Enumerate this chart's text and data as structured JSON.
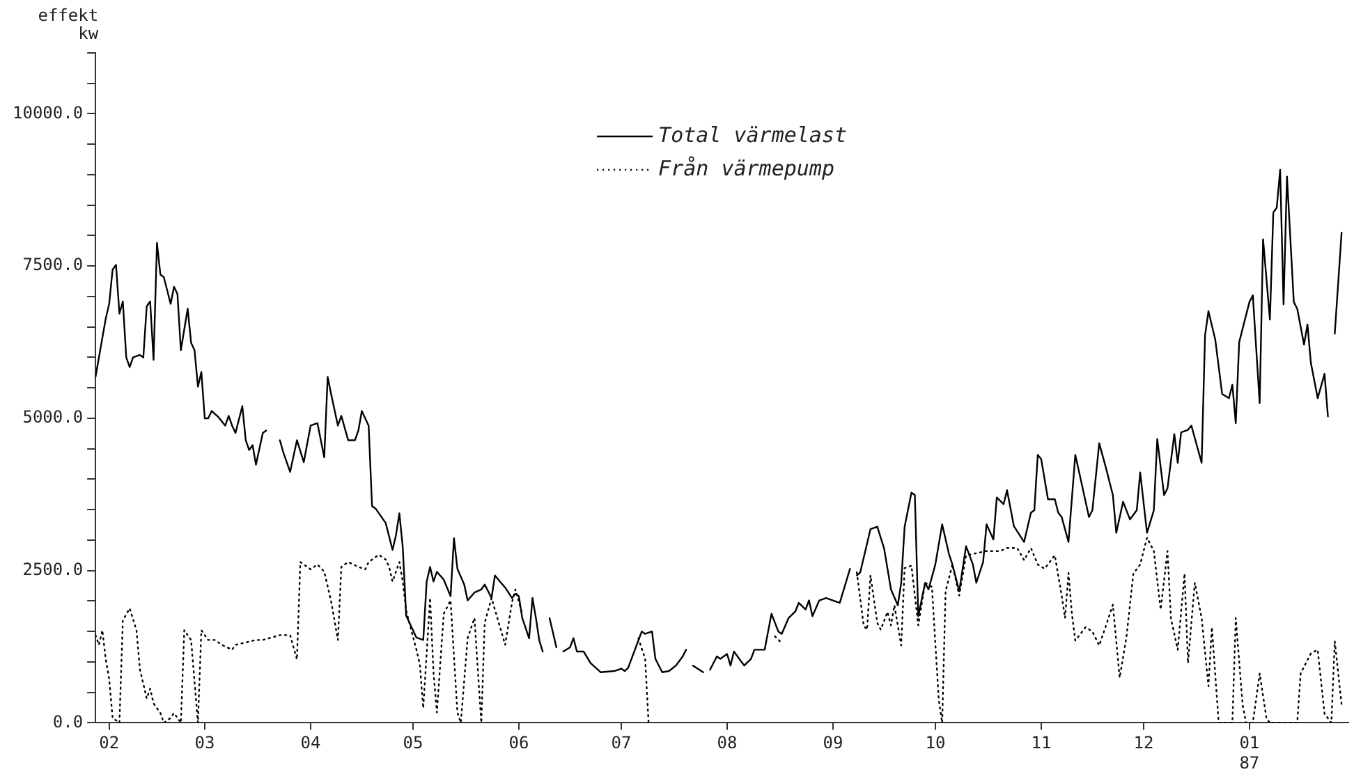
{
  "chart_data": {
    "type": "line",
    "ylabel": "effekt\nkw",
    "xlim": [
      "1986-01-28",
      "1987-01-30"
    ],
    "xticks": [
      {
        "value": "1986-02-01",
        "label": "02"
      },
      {
        "value": "1986-03-01",
        "label": "03"
      },
      {
        "value": "1986-04-01",
        "label": "04"
      },
      {
        "value": "1986-05-01",
        "label": "05"
      },
      {
        "value": "1986-06-01",
        "label": "06"
      },
      {
        "value": "1986-07-01",
        "label": "07"
      },
      {
        "value": "1986-08-01",
        "label": "08"
      },
      {
        "value": "1986-09-01",
        "label": "09"
      },
      {
        "value": "1986-10-01",
        "label": "10"
      },
      {
        "value": "1986-11-01",
        "label": "11"
      },
      {
        "value": "1986-12-01",
        "label": "12"
      },
      {
        "value": "1987-01-01",
        "label": "01\n87"
      }
    ],
    "ylim": [
      0,
      11000
    ],
    "yticks": [
      {
        "value": 0,
        "label": "0.0"
      },
      {
        "value": 500,
        "label": null
      },
      {
        "value": 1000,
        "label": null
      },
      {
        "value": 1500,
        "label": null
      },
      {
        "value": 2000,
        "label": null
      },
      {
        "value": 2500,
        "label": "2500.0"
      },
      {
        "value": 3000,
        "label": null
      },
      {
        "value": 3500,
        "label": null
      },
      {
        "value": 4000,
        "label": null
      },
      {
        "value": 4500,
        "label": null
      },
      {
        "value": 5000,
        "label": "5000.0"
      },
      {
        "value": 5500,
        "label": null
      },
      {
        "value": 6000,
        "label": null
      },
      {
        "value": 6500,
        "label": null
      },
      {
        "value": 7000,
        "label": null
      },
      {
        "value": 7500,
        "label": "7500.0"
      },
      {
        "value": 8000,
        "label": null
      },
      {
        "value": 8500,
        "label": null
      },
      {
        "value": 9000,
        "label": null
      },
      {
        "value": 9500,
        "label": null
      },
      {
        "value": 10000,
        "label": "10000.0"
      },
      {
        "value": 10500,
        "label": null
      },
      {
        "value": 11000,
        "label": null
      }
    ],
    "legend": "top",
    "series": [
      {
        "name": "Total värmelast",
        "color": "#000000",
        "line_style": "solid",
        "x": [
          "1986-01-28",
          "1986-01-29",
          "1986-01-31",
          "1986-02-01",
          "1986-02-02",
          "1986-02-03",
          "1986-02-04",
          "1986-02-05",
          "1986-02-06",
          "1986-02-07",
          "1986-02-08",
          "1986-02-10",
          "1986-02-11",
          "1986-02-12",
          "1986-02-13",
          "1986-02-14",
          "1986-02-15",
          "1986-02-16",
          "1986-02-17",
          "1986-02-19",
          "1986-02-20",
          "1986-02-21",
          "1986-02-22",
          "1986-02-24",
          "1986-02-25",
          "1986-02-26",
          "1986-02-27",
          "1986-02-28",
          "1986-03-01",
          "1986-03-02",
          "1986-03-03",
          "1986-03-05",
          "1986-03-07",
          "1986-03-08",
          "1986-03-09",
          "1986-03-10",
          "1986-03-12",
          "1986-03-13",
          "1986-03-14",
          "1986-03-15",
          "1986-03-16",
          "1986-03-18",
          "1986-03-19",
          "1986-03-20",
          "1986-03-23",
          "1986-03-24",
          "1986-03-26",
          "1986-03-28",
          "1986-03-30",
          "1986-04-01",
          "1986-04-03",
          "1986-04-05",
          "1986-04-06",
          "1986-04-07",
          "1986-04-09",
          "1986-04-10",
          "1986-04-12",
          "1986-04-14",
          "1986-04-15",
          "1986-04-16",
          "1986-04-18",
          "1986-04-19",
          "1986-04-20",
          "1986-04-23",
          "1986-04-25",
          "1986-04-26",
          "1986-04-27",
          "1986-04-28",
          "1986-04-29",
          "1986-05-01",
          "1986-05-02",
          "1986-05-04",
          "1986-05-05",
          "1986-05-06",
          "1986-05-07",
          "1986-05-08",
          "1986-05-10",
          "1986-05-12",
          "1986-05-13",
          "1986-05-14",
          "1986-05-16",
          "1986-05-17",
          "1986-05-19",
          "1986-05-21",
          "1986-05-22",
          "1986-05-24",
          "1986-05-25",
          "1986-05-26",
          "1986-05-28",
          "1986-05-30",
          "1986-05-31",
          "1986-06-01",
          "1986-06-02",
          "1986-06-04",
          "1986-06-05",
          "1986-06-06",
          "1986-06-07",
          "1986-06-08",
          "1986-06-09",
          "1986-06-10",
          "1986-06-12",
          "1986-06-13",
          "1986-06-14",
          "1986-06-16",
          "1986-06-17",
          "1986-06-18",
          "1986-06-20",
          "1986-06-22",
          "1986-06-25",
          "1986-06-29",
          "1986-07-01",
          "1986-07-02",
          "1986-07-03",
          "1986-07-06",
          "1986-07-07",
          "1986-07-08",
          "1986-07-10",
          "1986-07-11",
          "1986-07-13",
          "1986-07-15",
          "1986-07-17",
          "1986-07-19",
          "1986-07-20",
          "1986-07-21",
          "1986-07-22",
          "1986-07-25",
          "1986-07-26",
          "1986-07-27",
          "1986-07-29",
          "1986-07-30",
          "1986-08-01",
          "1986-08-02",
          "1986-08-03",
          "1986-08-06",
          "1986-08-08",
          "1986-08-09",
          "1986-08-12",
          "1986-08-14",
          "1986-08-16",
          "1986-08-17",
          "1986-08-19",
          "1986-08-21",
          "1986-08-22",
          "1986-08-24",
          "1986-08-25",
          "1986-08-26",
          "1986-08-28",
          "1986-08-30",
          "1986-09-01",
          "1986-09-03",
          "1986-09-06",
          "1986-09-07",
          "1986-09-08",
          "1986-09-09",
          "1986-09-12",
          "1986-09-14",
          "1986-09-16",
          "1986-09-18",
          "1986-09-20",
          "1986-09-21",
          "1986-09-22",
          "1986-09-24",
          "1986-09-25",
          "1986-09-26",
          "1986-09-28",
          "1986-09-29",
          "1986-10-01",
          "1986-10-03",
          "1986-10-05",
          "1986-10-06",
          "1986-10-08",
          "1986-10-10",
          "1986-10-12",
          "1986-10-13",
          "1986-10-15",
          "1986-10-16",
          "1986-10-18",
          "1986-10-19",
          "1986-10-21",
          "1986-10-22",
          "1986-10-24",
          "1986-10-27",
          "1986-10-29",
          "1986-10-30",
          "1986-10-31",
          "1986-11-01",
          "1986-11-03",
          "1986-11-05",
          "1986-11-06",
          "1986-11-07",
          "1986-11-09",
          "1986-11-11",
          "1986-11-13",
          "1986-11-15",
          "1986-11-16",
          "1986-11-18",
          "1986-11-20",
          "1986-11-22",
          "1986-11-23",
          "1986-11-25",
          "1986-11-27",
          "1986-11-29",
          "1986-11-30",
          "1986-12-02",
          "1986-12-04",
          "1986-12-05",
          "1986-12-07",
          "1986-12-08",
          "1986-12-10",
          "1986-12-11",
          "1986-12-12",
          "1986-12-14",
          "1986-12-15",
          "1986-12-18",
          "1986-12-19",
          "1986-12-20",
          "1986-12-22",
          "1986-12-24",
          "1986-12-26",
          "1986-12-27",
          "1986-12-28",
          "1986-12-29",
          "1986-12-30",
          "1987-01-01",
          "1987-01-02",
          "1987-01-04",
          "1987-01-05",
          "1987-01-07",
          "1987-01-08",
          "1987-01-09",
          "1987-01-10",
          "1987-01-11",
          "1987-01-12",
          "1987-01-14",
          "1987-01-15",
          "1987-01-17",
          "1987-01-18",
          "1987-01-19",
          "1987-01-21",
          "1987-01-23",
          "1987-01-24",
          "1987-01-25",
          "1987-01-26",
          "1987-01-28"
        ],
        "values": [
          5680,
          6000,
          6640,
          6880,
          7440,
          7520,
          6720,
          6920,
          6000,
          5840,
          6000,
          6040,
          6000,
          6840,
          6920,
          5960,
          7880,
          7360,
          7320,
          6880,
          7160,
          7040,
          6120,
          6800,
          6240,
          6120,
          5520,
          5760,
          5000,
          5000,
          5120,
          5020,
          4880,
          5040,
          4880,
          4760,
          5200,
          4640,
          4480,
          4560,
          4240,
          4760,
          4800,
          null,
          4640,
          4440,
          4120,
          4640,
          4280,
          4880,
          4920,
          4360,
          5680,
          5400,
          4880,
          5040,
          4640,
          4640,
          4800,
          5120,
          4880,
          3560,
          3520,
          3280,
          2840,
          3080,
          3440,
          2880,
          1760,
          1520,
          1400,
          1360,
          2320,
          2560,
          2320,
          2480,
          2350,
          2080,
          3030,
          2530,
          2270,
          2010,
          2140,
          2190,
          2270,
          2050,
          2420,
          2350,
          2220,
          2050,
          2120,
          2080,
          1720,
          1390,
          2050,
          1720,
          1350,
          1170,
          null,
          1720,
          1240,
          null,
          1170,
          1240,
          1390,
          1170,
          1170,
          980,
          830,
          850,
          890,
          850,
          900,
          1350,
          1500,
          1460,
          1500,
          1050,
          830,
          850,
          940,
          1090,
          1200,
          null,
          940,
          830,
          null,
          870,
          1090,
          1050,
          1130,
          940,
          1170,
          940,
          1050,
          1200,
          1200,
          1790,
          1500,
          1460,
          1720,
          1830,
          1970,
          1860,
          2010,
          1750,
          2010,
          2050,
          2010,
          1970,
          2530,
          null,
          2420,
          2470,
          3180,
          3220,
          2860,
          2190,
          1930,
          2300,
          3220,
          3780,
          3740,
          1750,
          2300,
          2190,
          2600,
          3260,
          2770,
          2600,
          2160,
          2900,
          2600,
          2300,
          2640,
          3260,
          3010,
          3700,
          3590,
          3820,
          3230,
          2970,
          3450,
          3490,
          4400,
          4330,
          3670,
          3670,
          3450,
          3380,
          2970,
          4400,
          3890,
          3380,
          3490,
          4590,
          4180,
          3740,
          3120,
          3630,
          3340,
          3490,
          4110,
          3120,
          3490,
          4660,
          3740,
          3850,
          4740,
          4270,
          4770,
          4810,
          4880,
          4270,
          6360,
          6760,
          6290,
          5400,
          5330,
          5550,
          4920,
          6250,
          6470,
          6910,
          7020,
          5250,
          7940,
          6620,
          8380,
          8460,
          9080,
          6870,
          8970,
          6910,
          6800,
          6210,
          6540,
          5910,
          5330,
          5730,
          5030,
          null,
          6390,
          8050
        ]
      },
      {
        "name": "Från värmepump",
        "color": "#000000",
        "line_style": "dotted",
        "x": [
          "1986-01-28",
          "1986-01-29",
          "1986-01-30",
          "1986-01-31",
          "1986-02-01",
          "1986-02-02",
          "1986-02-04",
          "1986-02-05",
          "1986-02-07",
          "1986-02-09",
          "1986-02-10",
          "1986-02-12",
          "1986-02-13",
          "1986-02-14",
          "1986-02-16",
          "1986-02-17",
          "1986-02-19",
          "1986-02-20",
          "1986-02-22",
          "1986-02-23",
          "1986-02-25",
          "1986-02-27",
          "1986-02-28",
          "1986-03-02",
          "1986-03-04",
          "1986-03-06",
          "1986-03-09",
          "1986-03-10",
          "1986-03-13",
          "1986-03-16",
          "1986-03-18",
          "1986-03-23",
          "1986-03-26",
          "1986-03-28",
          "1986-03-29",
          "1986-04-01",
          "1986-04-03",
          "1986-04-05",
          "1986-04-07",
          "1986-04-09",
          "1986-04-10",
          "1986-04-12",
          "1986-04-15",
          "1986-04-17",
          "1986-04-18",
          "1986-04-21",
          "1986-04-23",
          "1986-04-24",
          "1986-04-25",
          "1986-04-27",
          "1986-04-28",
          "1986-04-29",
          "1986-05-02",
          "1986-05-03",
          "1986-05-04",
          "1986-05-06",
          "1986-05-07",
          "1986-05-08",
          "1986-05-10",
          "1986-05-12",
          "1986-05-14",
          "1986-05-15",
          "1986-05-17",
          "1986-05-19",
          "1986-05-21",
          "1986-05-22",
          "1986-05-24",
          "1986-05-28",
          "1986-05-30",
          "1986-05-31",
          "1986-06-02",
          "1986-06-03",
          "1986-07-06",
          "1986-07-08",
          "1986-07-09",
          "1986-07-10",
          "1986-08-15",
          "1986-08-17",
          "1986-08-18",
          "1986-09-08",
          "1986-09-10",
          "1986-09-11",
          "1986-09-12",
          "1986-09-14",
          "1986-09-15",
          "1986-09-17",
          "1986-09-18",
          "1986-09-19",
          "1986-09-21",
          "1986-09-22",
          "1986-09-24",
          "1986-09-26",
          "1986-09-28",
          "1986-09-30",
          "1986-10-02",
          "1986-10-03",
          "1986-10-04",
          "1986-10-06",
          "1986-10-08",
          "1986-10-10",
          "1986-10-16",
          "1986-10-20",
          "1986-10-22",
          "1986-10-25",
          "1986-10-27",
          "1986-10-29",
          "1986-10-31",
          "1986-11-02",
          "1986-11-05",
          "1986-11-07",
          "1986-11-08",
          "1986-11-09",
          "1986-11-10",
          "1986-11-11",
          "1986-11-14",
          "1986-11-16",
          "1986-11-18",
          "1986-11-20",
          "1986-11-22",
          "1986-11-24",
          "1986-11-26",
          "1986-11-28",
          "1986-11-30",
          "1986-12-02",
          "1986-12-04",
          "1986-12-06",
          "1986-12-08",
          "1986-12-09",
          "1986-12-11",
          "1986-12-13",
          "1986-12-14",
          "1986-12-16",
          "1986-12-18",
          "1986-12-20",
          "1986-12-21",
          "1986-12-23",
          "1986-12-25",
          "1986-12-27",
          "1986-12-28",
          "1986-12-30",
          "1986-12-31",
          "1987-01-02",
          "1987-01-04",
          "1987-01-06",
          "1987-01-07",
          "1987-01-15",
          "1987-01-16",
          "1987-01-19",
          "1987-01-21",
          "1987-01-23",
          "1987-01-25",
          "1987-01-26",
          "1987-01-28"
        ],
        "values": [
          1440,
          1280,
          1520,
          1040,
          720,
          80,
          0,
          1680,
          1880,
          1520,
          880,
          400,
          560,
          320,
          160,
          0,
          80,
          160,
          0,
          1520,
          1360,
          0,
          1520,
          1360,
          1360,
          1280,
          1200,
          1280,
          1320,
          1360,
          1360,
          1440,
          1440,
          1040,
          2640,
          2520,
          2600,
          2480,
          2000,
          1360,
          2560,
          2640,
          2560,
          2520,
          2640,
          2760,
          2680,
          2560,
          2320,
          2640,
          2320,
          1840,
          1200,
          960,
          240,
          2050,
          830,
          170,
          1790,
          2010,
          170,
          0,
          1390,
          1720,
          0,
          1640,
          2050,
          1280,
          1980,
          2190,
          1790,
          null,
          1390,
          1050,
          0,
          null,
          1420,
          1310,
          null,
          2470,
          1600,
          1530,
          2420,
          1640,
          1530,
          1820,
          1600,
          1930,
          1270,
          2540,
          2580,
          1600,
          2300,
          2230,
          380,
          0,
          2160,
          2600,
          2090,
          2750,
          2820,
          2820,
          2870,
          2870,
          2670,
          2870,
          2600,
          2530,
          2750,
          2090,
          1720,
          2460,
          1790,
          1350,
          1570,
          1500,
          1270,
          1600,
          1940,
          740,
          1420,
          2450,
          2600,
          3040,
          2820,
          1860,
          2820,
          1720,
          1200,
          2450,
          980,
          2300,
          1720,
          600,
          1570,
          0,
          0,
          0,
          1720,
          300,
          0,
          0,
          810,
          70,
          0,
          0,
          810,
          1140,
          1200,
          150,
          0,
          1340,
          300
        ]
      }
    ]
  }
}
